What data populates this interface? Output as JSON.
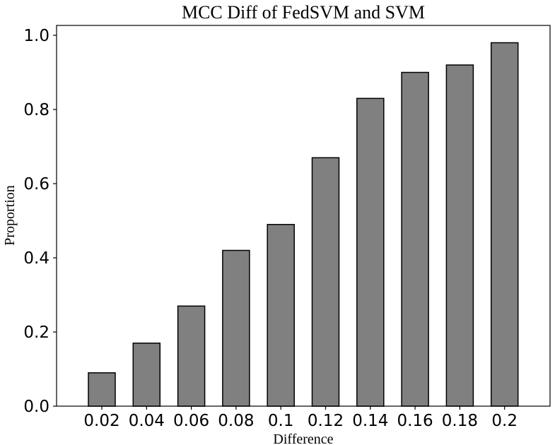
{
  "chart_data": {
    "type": "bar",
    "title": "MCC Diff of FedSVM and SVM",
    "xlabel": "Difference",
    "ylabel": "Proportion",
    "categories": [
      "0.02",
      "0.04",
      "0.06",
      "0.08",
      "0.1",
      "0.12",
      "0.14",
      "0.16",
      "0.18",
      "0.2"
    ],
    "values": [
      0.09,
      0.17,
      0.27,
      0.42,
      0.49,
      0.67,
      0.83,
      0.9,
      0.92,
      0.98
    ],
    "ylim": [
      0,
      1.0
    ],
    "yticks": [
      "0.0",
      "0.2",
      "0.4",
      "0.6",
      "0.8",
      "1.0"
    ],
    "grid": false,
    "colors": {
      "bar_fill": "#808080",
      "bar_edge": "#000000"
    }
  }
}
